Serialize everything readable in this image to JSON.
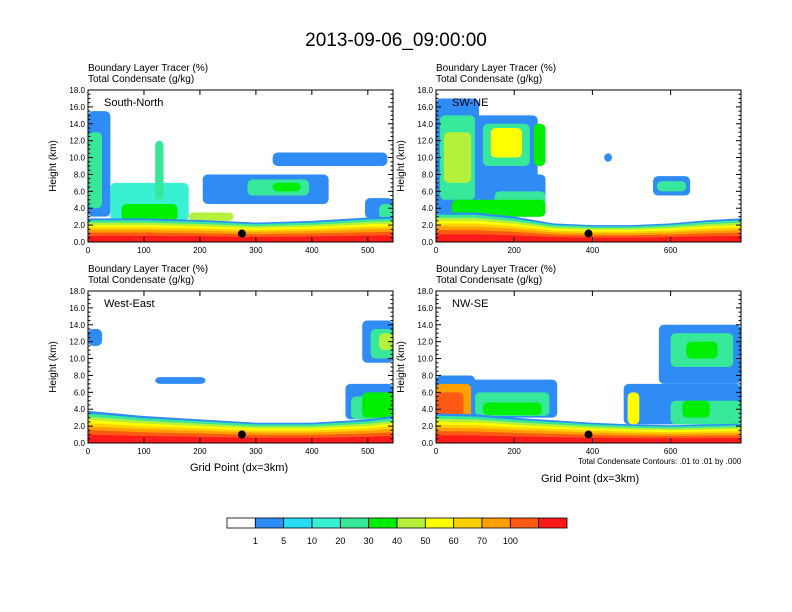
{
  "title": "2013-09-06_09:00:00",
  "colors": {
    "white": "#ffffff",
    "blue": "#2f8cf5",
    "lightblue": "#28dcf5",
    "cyan": "#3af0d2",
    "teal": "#38e89a",
    "green": "#00ee00",
    "lime": "#b4f03c",
    "yellow": "#ffff00",
    "gold": "#ffd000",
    "orange": "#ffa000",
    "orangered": "#ff5a14",
    "red": "#ff1a1a",
    "black": "#000000"
  },
  "chart_data": [
    {
      "type": "heatmap",
      "panel": "South-North",
      "header": [
        "Boundary Layer Tracer    (%)",
        "Total Condensate    (g/kg)"
      ],
      "ylabel": "Height (km)",
      "xlabel": "",
      "xlim": [
        0,
        545
      ],
      "ylim": [
        0,
        18
      ],
      "xticks": [
        0,
        100,
        200,
        300,
        400,
        500
      ],
      "yticks": [
        "0.0",
        "2.0",
        "4.0",
        "6.0",
        "8.0",
        "10.0",
        "12.0",
        "14.0",
        "16.0",
        "18.0"
      ],
      "marker": {
        "x": 275,
        "y": 1.0
      },
      "bl_top": [
        [
          0,
          2.8
        ],
        [
          100,
          2.8
        ],
        [
          200,
          2.6
        ],
        [
          300,
          2.3
        ],
        [
          400,
          2.5
        ],
        [
          500,
          2.9
        ],
        [
          545,
          3.0
        ]
      ],
      "features": [
        {
          "x0": 0,
          "x1": 40,
          "y0": 3,
          "y1": 15.5,
          "level": "blue"
        },
        {
          "x0": 0,
          "x1": 25,
          "y0": 4,
          "y1": 13,
          "level": "teal"
        },
        {
          "x0": 40,
          "x1": 180,
          "y0": 2.5,
          "y1": 7,
          "level": "cyan"
        },
        {
          "x0": 60,
          "x1": 160,
          "y0": 2.5,
          "y1": 4.5,
          "level": "green"
        },
        {
          "x0": 120,
          "x1": 135,
          "y0": 5,
          "y1": 12,
          "level": "teal"
        },
        {
          "x0": 180,
          "x1": 260,
          "y0": 2.5,
          "y1": 3.5,
          "level": "lime"
        },
        {
          "x0": 205,
          "x1": 430,
          "y0": 4.5,
          "y1": 8,
          "level": "blue"
        },
        {
          "x0": 285,
          "x1": 395,
          "y0": 5.5,
          "y1": 7.4,
          "level": "teal"
        },
        {
          "x0": 330,
          "x1": 380,
          "y0": 6,
          "y1": 7,
          "level": "green"
        },
        {
          "x0": 330,
          "x1": 535,
          "y0": 9,
          "y1": 10.6,
          "level": "blue"
        },
        {
          "x0": 495,
          "x1": 545,
          "y0": 2.8,
          "y1": 5.2,
          "level": "blue"
        },
        {
          "x0": 520,
          "x1": 545,
          "y0": 2.8,
          "y1": 4.5,
          "level": "teal"
        }
      ]
    },
    {
      "type": "heatmap",
      "panel": "SW-NE",
      "header": [
        "Boundary Layer Tracer    (%)",
        "Total Condensate    (g/kg)"
      ],
      "ylabel": "Height (km)",
      "xlabel": "",
      "xlim": [
        0,
        780
      ],
      "ylim": [
        0,
        18
      ],
      "xticks": [
        0,
        200,
        400,
        600
      ],
      "yticks": [
        "0.0",
        "2.0",
        "4.0",
        "6.0",
        "8.0",
        "10.0",
        "12.0",
        "14.0",
        "16.0",
        "18.0"
      ],
      "marker": {
        "x": 390,
        "y": 1.0
      },
      "bl_top": [
        [
          0,
          3.5
        ],
        [
          100,
          3.5
        ],
        [
          200,
          3.0
        ],
        [
          300,
          2.2
        ],
        [
          400,
          2.0
        ],
        [
          500,
          2.0
        ],
        [
          600,
          2.2
        ],
        [
          700,
          2.6
        ],
        [
          780,
          2.8
        ]
      ],
      "features": [
        {
          "x0": 0,
          "x1": 110,
          "y0": 3,
          "y1": 17,
          "level": "blue"
        },
        {
          "x0": 10,
          "x1": 100,
          "y0": 5,
          "y1": 15,
          "level": "teal"
        },
        {
          "x0": 20,
          "x1": 90,
          "y0": 7,
          "y1": 13,
          "level": "lime"
        },
        {
          "x0": 100,
          "x1": 260,
          "y0": 3,
          "y1": 15,
          "level": "blue"
        },
        {
          "x0": 120,
          "x1": 240,
          "y0": 9,
          "y1": 14,
          "level": "teal"
        },
        {
          "x0": 140,
          "x1": 220,
          "y0": 10,
          "y1": 13.5,
          "level": "yellow"
        },
        {
          "x0": 250,
          "x1": 280,
          "y0": 9,
          "y1": 14,
          "level": "green"
        },
        {
          "x0": 150,
          "x1": 280,
          "y0": 3,
          "y1": 8,
          "level": "blue"
        },
        {
          "x0": 150,
          "x1": 280,
          "y0": 3,
          "y1": 6,
          "level": "teal"
        },
        {
          "x0": 40,
          "x1": 280,
          "y0": 3,
          "y1": 5,
          "level": "green"
        },
        {
          "x0": 555,
          "x1": 650,
          "y0": 5.5,
          "y1": 7.8,
          "level": "blue"
        },
        {
          "x0": 565,
          "x1": 640,
          "y0": 6,
          "y1": 7.2,
          "level": "teal"
        },
        {
          "x0": 430,
          "x1": 450,
          "y0": 9.5,
          "y1": 10.5,
          "level": "blue"
        }
      ]
    },
    {
      "type": "heatmap",
      "panel": "West-East",
      "header": [
        "Boundary Layer Tracer    (%)",
        "Total Condensate    (g/kg)"
      ],
      "ylabel": "Height (km)",
      "xlabel": "Grid Point  (dx=3km)",
      "xlim": [
        0,
        545
      ],
      "ylim": [
        0,
        18
      ],
      "xticks": [
        0,
        100,
        200,
        300,
        400,
        500
      ],
      "yticks": [
        "0.0",
        "2.0",
        "4.0",
        "6.0",
        "8.0",
        "10.0",
        "12.0",
        "14.0",
        "16.0",
        "18.0"
      ],
      "marker": {
        "x": 275,
        "y": 1.0
      },
      "bl_top": [
        [
          0,
          3.8
        ],
        [
          100,
          3.2
        ],
        [
          200,
          2.8
        ],
        [
          300,
          2.4
        ],
        [
          400,
          2.4
        ],
        [
          500,
          2.8
        ],
        [
          545,
          3.2
        ]
      ],
      "features": [
        {
          "x0": 0,
          "x1": 25,
          "y0": 11.5,
          "y1": 13.5,
          "level": "blue"
        },
        {
          "x0": 120,
          "x1": 210,
          "y0": 7,
          "y1": 7.8,
          "level": "blue"
        },
        {
          "x0": 460,
          "x1": 545,
          "y0": 2.8,
          "y1": 7,
          "level": "blue"
        },
        {
          "x0": 470,
          "x1": 545,
          "y0": 2.8,
          "y1": 5.5,
          "level": "teal"
        },
        {
          "x0": 490,
          "x1": 545,
          "y0": 3,
          "y1": 6,
          "level": "green"
        },
        {
          "x0": 490,
          "x1": 545,
          "y0": 9.5,
          "y1": 14.5,
          "level": "blue"
        },
        {
          "x0": 505,
          "x1": 545,
          "y0": 10,
          "y1": 13.5,
          "level": "teal"
        },
        {
          "x0": 520,
          "x1": 545,
          "y0": 11,
          "y1": 13,
          "level": "lime"
        }
      ]
    },
    {
      "type": "heatmap",
      "panel": "NW-SE",
      "header": [
        "Boundary Layer Tracer    (%)",
        "Total Condensate    (g/kg)"
      ],
      "ylabel": "Height (km)",
      "xlabel": "Grid Point  (dx=3km)",
      "note": "Total Condensate Contours: .01 to .01 by .000",
      "xlim": [
        0,
        780
      ],
      "ylim": [
        0,
        18
      ],
      "xticks": [
        0,
        200,
        400,
        600
      ],
      "yticks": [
        "0.0",
        "2.0",
        "4.0",
        "6.0",
        "8.0",
        "10.0",
        "12.0",
        "14.0",
        "16.0",
        "18.0"
      ],
      "marker": {
        "x": 390,
        "y": 1.0
      },
      "bl_top": [
        [
          0,
          3.5
        ],
        [
          100,
          3.4
        ],
        [
          200,
          3.0
        ],
        [
          300,
          2.7
        ],
        [
          400,
          2.4
        ],
        [
          500,
          2.2
        ],
        [
          600,
          2.1
        ],
        [
          700,
          2.2
        ],
        [
          780,
          2.3
        ]
      ],
      "features": [
        {
          "x0": 0,
          "x1": 100,
          "y0": 2,
          "y1": 8,
          "level": "blue"
        },
        {
          "x0": 0,
          "x1": 90,
          "y0": 2.5,
          "y1": 7,
          "level": "orange"
        },
        {
          "x0": 0,
          "x1": 70,
          "y0": 3,
          "y1": 6,
          "level": "orangered"
        },
        {
          "x0": 90,
          "x1": 310,
          "y0": 3,
          "y1": 7.5,
          "level": "blue"
        },
        {
          "x0": 100,
          "x1": 290,
          "y0": 3.2,
          "y1": 6,
          "level": "teal"
        },
        {
          "x0": 120,
          "x1": 270,
          "y0": 3.3,
          "y1": 4.8,
          "level": "green"
        },
        {
          "x0": 480,
          "x1": 780,
          "y0": 2.2,
          "y1": 7,
          "level": "blue"
        },
        {
          "x0": 490,
          "x1": 520,
          "y0": 2.2,
          "y1": 6,
          "level": "yellow"
        },
        {
          "x0": 570,
          "x1": 780,
          "y0": 7,
          "y1": 14,
          "level": "blue"
        },
        {
          "x0": 600,
          "x1": 760,
          "y0": 9,
          "y1": 13,
          "level": "teal"
        },
        {
          "x0": 640,
          "x1": 720,
          "y0": 10,
          "y1": 12,
          "level": "green"
        },
        {
          "x0": 600,
          "x1": 780,
          "y0": 2.2,
          "y1": 5,
          "level": "teal"
        },
        {
          "x0": 630,
          "x1": 700,
          "y0": 3,
          "y1": 5,
          "level": "green"
        }
      ]
    }
  ],
  "colorbar": {
    "labels": [
      "1",
      "5",
      "10",
      "20",
      "30",
      "40",
      "50",
      "60",
      "70",
      "100"
    ],
    "levels": [
      "white",
      "blue",
      "lightblue",
      "cyan",
      "teal",
      "green",
      "lime",
      "yellow",
      "gold",
      "orange",
      "orangered",
      "red"
    ]
  }
}
